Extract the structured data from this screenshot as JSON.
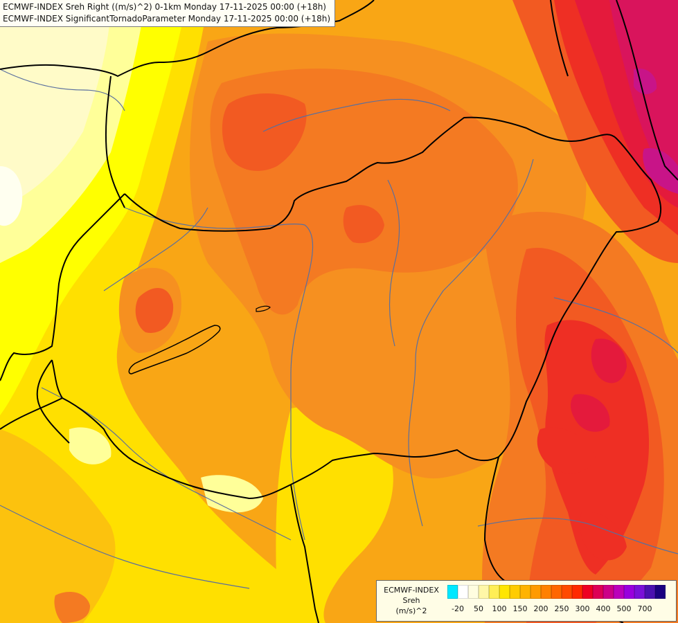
{
  "title": {
    "line1": "ECMWF-INDEX Sreh Right ((m/s)^2) 0-1km Monday 17-11-2025 00:00 (+18h)",
    "line2": "ECMWF-INDEX SignificantTornadoParameter Monday 17-11-2025 00:00 (+18h)"
  },
  "legend": {
    "line1": "ECMWF-INDEX",
    "line2": "Sreh",
    "line3": "(m/s)^2",
    "colors": [
      "#00e8ff",
      "#ffffff",
      "#fffde0",
      "#fff7a8",
      "#ffee55",
      "#ffe600",
      "#ffcc00",
      "#ffb300",
      "#ff9a00",
      "#ff8000",
      "#ff6600",
      "#ff4a00",
      "#ff2a00",
      "#ee0022",
      "#dd0055",
      "#cc0088",
      "#bb00bb",
      "#9900dd",
      "#7a10d8",
      "#4a10b0",
      "#1a0080"
    ],
    "ticks": [
      {
        "label": "-20",
        "index": 1
      },
      {
        "label": "50",
        "index": 3
      },
      {
        "label": "100",
        "index": 5
      },
      {
        "label": "150",
        "index": 7
      },
      {
        "label": "200",
        "index": 9
      },
      {
        "label": "250",
        "index": 11
      },
      {
        "label": "300",
        "index": 13
      },
      {
        "label": "400",
        "index": 15
      },
      {
        "label": "500",
        "index": 17
      },
      {
        "label": "700",
        "index": 19
      }
    ]
  },
  "map_colors": {
    "pale": "#fffff0",
    "cream": "#fffbc8",
    "light_yellow": "#ffff99",
    "yellow": "#ffff00",
    "gold": "#ffe000",
    "amber": "#fcc20e",
    "orange_light": "#f8a41a",
    "orange": "#f69020",
    "orange_dark": "#f47a22",
    "red_orange": "#f25a22",
    "red": "#ee2f24",
    "crimson": "#e41a3c",
    "magenta": "#d9145c",
    "purple": "#c81488",
    "border": "#000000",
    "river": "#5a6f9e"
  }
}
